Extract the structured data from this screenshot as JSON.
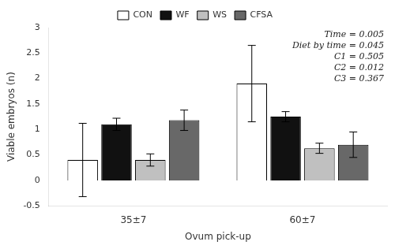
{
  "chart_data": {
    "type": "bar",
    "xlabel": "Ovum pick-up",
    "ylabel": "Viable embryos (n)",
    "categories": [
      "35±7",
      "60±7"
    ],
    "series": [
      {
        "name": "CON",
        "color": "#ffffff",
        "values": [
          0.4,
          1.9
        ],
        "errors": [
          0.72,
          0.75
        ]
      },
      {
        "name": "WF",
        "color": "#111111",
        "values": [
          1.1,
          1.25
        ],
        "errors": [
          0.12,
          0.1
        ]
      },
      {
        "name": "WS",
        "color": "#c0c0c0",
        "values": [
          0.4,
          0.63
        ],
        "errors": [
          0.12,
          0.1
        ]
      },
      {
        "name": "CFSA",
        "color": "#686868",
        "values": [
          1.18,
          0.7
        ],
        "errors": [
          0.2,
          0.25
        ]
      }
    ],
    "ylim": [
      -0.5,
      3.0
    ],
    "yticks": [
      -0.5,
      0,
      0.5,
      1,
      1.5,
      2,
      2.5,
      3
    ],
    "annotation": "Time = 0.005\nDiet by time = 0.045\nC1 = 0.505\nC2 = 0.012\nC3 = 0.367",
    "legend": "top",
    "grid": false
  }
}
